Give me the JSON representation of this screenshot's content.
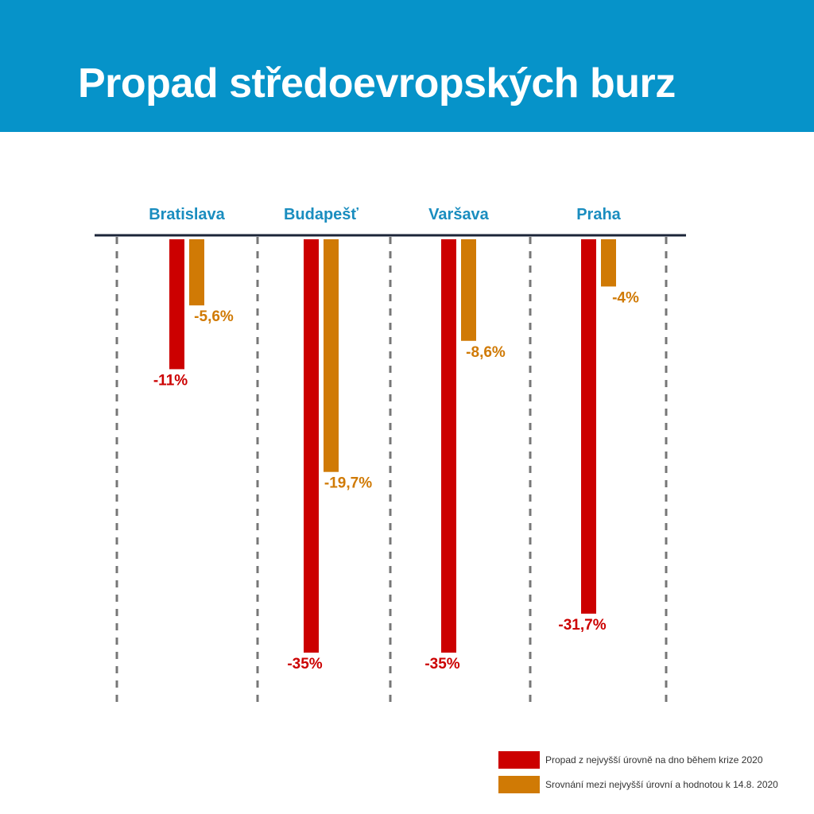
{
  "header": {
    "title": "Propad středoevropských burz",
    "background_color": "#0693c9"
  },
  "chart_data": {
    "type": "bar",
    "categories": [
      "Bratislava",
      "Budapešť",
      "Varšava",
      "Praha"
    ],
    "series": [
      {
        "name": "Propad z nejvyšší úrovně na dno během krize 2020",
        "values": [
          -11,
          -35,
          -35,
          -31.7
        ],
        "labels": [
          "-11%",
          "-35%",
          "-35%",
          "-31,7%"
        ],
        "color": "#cc0000"
      },
      {
        "name": "Srovnání mezi nejvyšší úrovní a hodnotou k 14.8. 2020",
        "values": [
          -5.6,
          -19.7,
          -8.6,
          -4
        ],
        "labels": [
          "-5,6%",
          "-19,7%",
          "-8,6%",
          "-4%"
        ],
        "color": "#d07a05"
      }
    ],
    "ylim": [
      -35,
      0
    ],
    "grid": "vertical dashed separators",
    "legend_position": "bottom-right",
    "category_label_color": "#1a8dbf",
    "axis_color": "#1b2538",
    "grid_color": "#777777"
  }
}
